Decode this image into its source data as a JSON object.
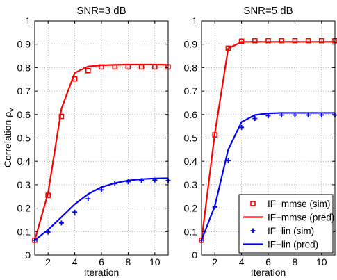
{
  "chart_data": [
    {
      "type": "line",
      "title": "SNR=3 dB",
      "xlabel": "Iteration",
      "ylabel": "Correlation ρ",
      "ylabel_subscript": "v",
      "xlim": [
        1,
        11
      ],
      "ylim": [
        0,
        1
      ],
      "xticks": [
        2,
        4,
        6,
        8,
        10
      ],
      "yticks": [
        0,
        0.1,
        0.2,
        0.3,
        0.4,
        0.5,
        0.6,
        0.7,
        0.8,
        0.9,
        1
      ],
      "grid": true,
      "x": [
        1,
        2,
        3,
        4,
        5,
        6,
        7,
        8,
        9,
        10,
        11
      ],
      "series": [
        {
          "name": "IF−mmse (sim)",
          "style": "square-markers",
          "color": "#ff0000",
          "values": [
            0.063,
            0.255,
            0.592,
            0.752,
            0.787,
            0.803,
            0.803,
            0.803,
            0.803,
            0.803,
            0.803
          ]
        },
        {
          "name": "IF−mmse (pred)",
          "style": "line",
          "color": "#ff0000",
          "values": [
            0.063,
            0.265,
            0.625,
            0.778,
            0.805,
            0.81,
            0.812,
            0.813,
            0.813,
            0.813,
            0.812
          ]
        },
        {
          "name": "IF−lin (sim)",
          "style": "plus-markers",
          "color": "#0000ff",
          "values": [
            0.063,
            0.098,
            0.137,
            0.183,
            0.24,
            0.278,
            0.305,
            0.313,
            0.318,
            0.32,
            0.318
          ]
        },
        {
          "name": "IF−lin (pred)",
          "style": "line",
          "color": "#0000ff",
          "values": [
            0.063,
            0.108,
            0.162,
            0.217,
            0.26,
            0.29,
            0.307,
            0.318,
            0.324,
            0.327,
            0.328
          ]
        }
      ]
    },
    {
      "type": "line",
      "title": "SNR=5 dB",
      "xlabel": "Iteration",
      "ylabel": "",
      "xlim": [
        1,
        11
      ],
      "ylim": [
        0,
        1
      ],
      "xticks": [
        2,
        4,
        6,
        8,
        10
      ],
      "yticks": [
        0,
        0.1,
        0.2,
        0.3,
        0.4,
        0.5,
        0.6,
        0.7,
        0.8,
        0.9,
        1
      ],
      "grid": true,
      "legend": "bottom-right",
      "x": [
        1,
        2,
        3,
        4,
        5,
        6,
        7,
        8,
        9,
        10,
        11
      ],
      "series": [
        {
          "name": "IF−mmse (sim)",
          "style": "square-markers",
          "color": "#ff0000",
          "values": [
            0.063,
            0.513,
            0.883,
            0.913,
            0.915,
            0.915,
            0.915,
            0.915,
            0.915,
            0.915,
            0.915
          ]
        },
        {
          "name": "IF−mmse (pred)",
          "style": "line",
          "color": "#ff0000",
          "values": [
            0.063,
            0.52,
            0.882,
            0.91,
            0.91,
            0.91,
            0.91,
            0.91,
            0.91,
            0.91,
            0.91
          ]
        },
        {
          "name": "IF−lin (sim)",
          "style": "plus-markers",
          "color": "#0000ff",
          "values": [
            0.063,
            0.205,
            0.403,
            0.545,
            0.583,
            0.595,
            0.598,
            0.598,
            0.598,
            0.598,
            0.598
          ]
        },
        {
          "name": "IF−lin (pred)",
          "style": "line",
          "color": "#0000ff",
          "values": [
            0.063,
            0.21,
            0.45,
            0.568,
            0.598,
            0.605,
            0.607,
            0.607,
            0.607,
            0.607,
            0.607
          ]
        }
      ]
    }
  ]
}
